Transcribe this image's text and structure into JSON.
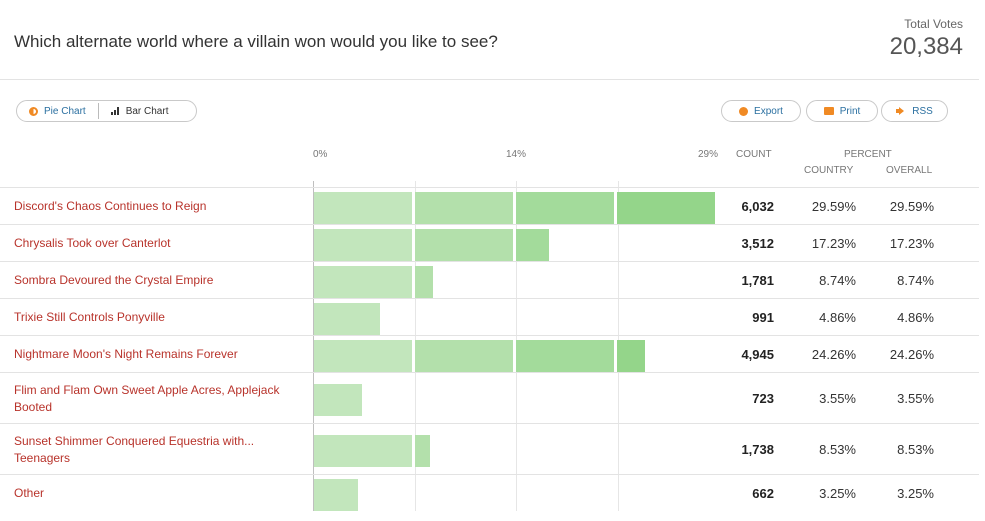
{
  "question": "Which alternate world where a villain won would you like to see?",
  "total": {
    "label": "Total Votes",
    "value": "20,384"
  },
  "view_toggle": {
    "pie_label": "Pie Chart",
    "bar_label": "Bar Chart"
  },
  "actions": {
    "export_label": "Export",
    "print_label": "Print",
    "rss_label": "RSS"
  },
  "columns": {
    "count": "COUNT",
    "percent": "PERCENT",
    "country": "COUNTRY",
    "overall": "OVERALL"
  },
  "colors": {
    "bar_light": "#c2e6bc",
    "bar_dark": "#94d58a",
    "label_red": "#b8332b",
    "link_blue": "#2a6fa0",
    "accent_orange": "#f08a24"
  },
  "chart_data": {
    "type": "bar",
    "orientation": "horizontal",
    "x_ticks": [
      "0%",
      "14%",
      "29%"
    ],
    "xlim": [
      0,
      29.59
    ],
    "categories": [
      "Discord's Chaos Continues to Reign",
      "Chrysalis Took over Canterlot",
      "Sombra Devoured the Crystal Empire",
      "Trixie Still Controls Ponyville",
      "Nightmare Moon's Night Remains Forever",
      "Flim and Flam Own Sweet Apple Acres, Applejack Booted",
      "Sunset Shimmer Conquered Equestria with... Teenagers",
      "Other"
    ],
    "counts": [
      "6,032",
      "3,512",
      "1,781",
      "991",
      "4,945",
      "723",
      "1,738",
      "662"
    ],
    "percent_values": [
      29.59,
      17.23,
      8.74,
      4.86,
      24.26,
      3.55,
      8.53,
      3.25
    ],
    "percent_country": [
      "29.59%",
      "17.23%",
      "8.74%",
      "4.86%",
      "24.26%",
      "3.55%",
      "8.53%",
      "3.25%"
    ],
    "percent_overall": [
      "29.59%",
      "17.23%",
      "8.74%",
      "4.86%",
      "24.26%",
      "3.55%",
      "8.53%",
      "3.25%"
    ]
  }
}
